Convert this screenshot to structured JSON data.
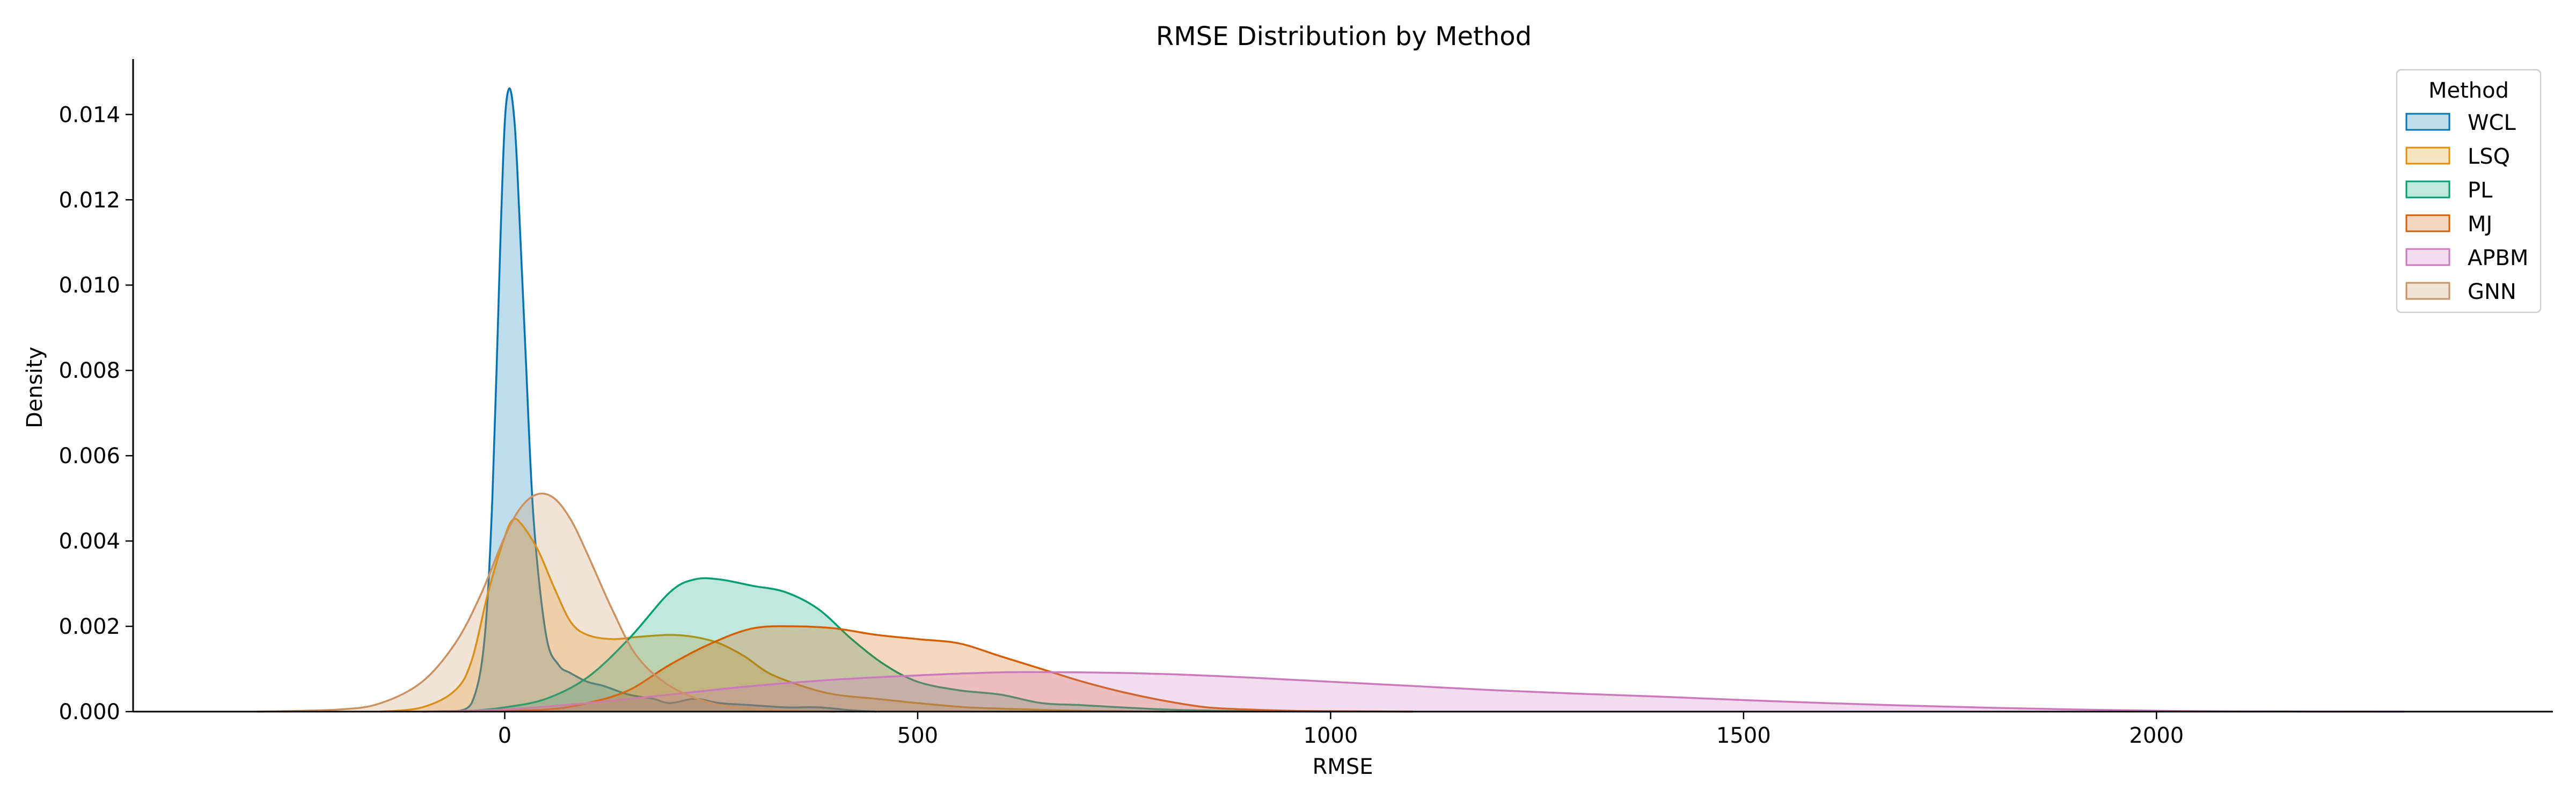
{
  "chart_data": {
    "type": "area",
    "title": "RMSE Distribution by Method",
    "xlabel": "RMSE",
    "ylabel": "Density",
    "xlim": [
      -450,
      2480
    ],
    "ylim": [
      0,
      0.0153
    ],
    "xticks": [
      0,
      500,
      1000,
      1500,
      2000
    ],
    "yticks": [
      0.0,
      0.002,
      0.004,
      0.006,
      0.008,
      0.01,
      0.012,
      0.014
    ],
    "ytick_labels": [
      "0.000",
      "0.002",
      "0.004",
      "0.006",
      "0.008",
      "0.010",
      "0.012",
      "0.014"
    ],
    "grid": false,
    "legend": {
      "title": "Method",
      "placement": "top-right"
    },
    "series": [
      {
        "name": "WCL",
        "color": "#0173b2",
        "x": [
          -60,
          -40,
          -25,
          -15,
          -5,
          0,
          5,
          10,
          15,
          25,
          35,
          50,
          65,
          80,
          100,
          120,
          150,
          180,
          200,
          230,
          260,
          300,
          340,
          380,
          420,
          450
        ],
        "y": [
          0,
          0.0002,
          0.0016,
          0.005,
          0.0112,
          0.0138,
          0.0146,
          0.0142,
          0.0128,
          0.0085,
          0.0045,
          0.0018,
          0.0011,
          0.0009,
          0.0007,
          0.0006,
          0.0004,
          0.0003,
          0.0002,
          0.0003,
          0.0002,
          0.00015,
          0.0001,
          0.0001,
          3e-05,
          0
        ]
      },
      {
        "name": "LSQ",
        "color": "#de8f05",
        "x": [
          -150,
          -100,
          -60,
          -40,
          -20,
          0,
          10,
          20,
          40,
          60,
          80,
          100,
          130,
          160,
          200,
          230,
          260,
          290,
          320,
          360,
          400,
          450,
          500,
          560,
          620,
          700,
          800
        ],
        "y": [
          0,
          0.0001,
          0.0005,
          0.0012,
          0.0028,
          0.0041,
          0.0045,
          0.0044,
          0.0038,
          0.0029,
          0.0021,
          0.0018,
          0.0017,
          0.00175,
          0.0018,
          0.00175,
          0.0016,
          0.0013,
          0.0009,
          0.0006,
          0.0004,
          0.0003,
          0.0002,
          0.0001,
          6e-05,
          2e-05,
          0
        ]
      },
      {
        "name": "PL",
        "color": "#029e73",
        "x": [
          -50,
          0,
          50,
          100,
          150,
          200,
          230,
          260,
          300,
          340,
          380,
          420,
          460,
          500,
          550,
          600,
          650,
          700,
          800,
          900,
          1000
        ],
        "y": [
          0,
          0.0001,
          0.0003,
          0.0008,
          0.0017,
          0.0028,
          0.0031,
          0.0031,
          0.00295,
          0.0028,
          0.0024,
          0.0017,
          0.0011,
          0.0007,
          0.0005,
          0.0004,
          0.0002,
          0.00015,
          5e-05,
          1e-05,
          0
        ]
      },
      {
        "name": "MJ",
        "color": "#d55e00",
        "x": [
          -50,
          50,
          100,
          150,
          200,
          250,
          300,
          350,
          400,
          450,
          500,
          550,
          600,
          650,
          700,
          750,
          800,
          850,
          900,
          950,
          1000,
          1100
        ],
        "y": [
          0,
          5e-05,
          0.0002,
          0.0005,
          0.0011,
          0.0016,
          0.00195,
          0.002,
          0.00195,
          0.0018,
          0.0017,
          0.0016,
          0.0013,
          0.001,
          0.0007,
          0.00045,
          0.00025,
          0.0001,
          5e-05,
          2e-05,
          1e-05,
          0
        ]
      },
      {
        "name": "APBM",
        "color": "#cc78bc",
        "x": [
          -100,
          0,
          100,
          200,
          300,
          400,
          500,
          600,
          700,
          800,
          900,
          1000,
          1100,
          1200,
          1300,
          1400,
          1500,
          1600,
          1700,
          1800,
          1900,
          2000,
          2100,
          2300
        ],
        "y": [
          0,
          5e-05,
          0.0002,
          0.0004,
          0.0006,
          0.00075,
          0.00085,
          0.00092,
          0.00092,
          0.00088,
          0.0008,
          0.0007,
          0.0006,
          0.0005,
          0.00042,
          0.00035,
          0.00027,
          0.0002,
          0.00014,
          9e-05,
          5e-05,
          2e-05,
          5e-06,
          0
        ]
      },
      {
        "name": "GNN",
        "color": "#ca9161",
        "x": [
          -300,
          -200,
          -150,
          -100,
          -60,
          -30,
          0,
          20,
          40,
          60,
          80,
          100,
          130,
          160,
          200,
          250,
          300,
          350,
          400
        ],
        "y": [
          0,
          5e-05,
          0.0002,
          0.0007,
          0.0016,
          0.0027,
          0.0041,
          0.0048,
          0.0051,
          0.005,
          0.0045,
          0.0037,
          0.0024,
          0.0013,
          0.0006,
          0.0002,
          7e-05,
          2e-05,
          0
        ]
      }
    ]
  }
}
